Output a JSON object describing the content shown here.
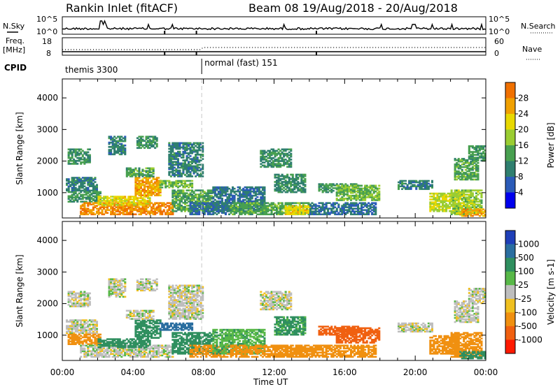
{
  "header": {
    "title": "Rankin Inlet (fitACF)",
    "beam_info": "Beam 08  19/Aug/2018 - 20/Aug/2018"
  },
  "strip_labels": {
    "nsky": "N.Sky",
    "nsky_low": "10^0",
    "nsky_high": "10^5",
    "freq_line1": "Freq.",
    "freq_line2": "[MHz]",
    "freq_low": "8",
    "freq_high": "18",
    "cpid": "CPID",
    "nsearch": "N.Search",
    "nsearch_low": "10^0",
    "nsearch_high": "10^5",
    "nave": "Nave",
    "nave_low": "0",
    "nave_high": "60"
  },
  "cpid_segments": [
    {
      "label": "themis 3300",
      "start_hour": 0.0,
      "end_hour": 7.9
    },
    {
      "label": "normal (fast) 151",
      "start_hour": 7.9,
      "end_hour": 24.0
    }
  ],
  "colors": {
    "power_scale": [
      "#0000ee",
      "#2b5bb8",
      "#2f7f6f",
      "#48a050",
      "#9acd32",
      "#e8d800",
      "#f0a000",
      "#f07000",
      "#ff2000"
    ],
    "velocity_scale": [
      "#1f3fb8",
      "#2a6ea0",
      "#2f8f5f",
      "#58b848",
      "#bebebe",
      "#f0c020",
      "#f09010",
      "#f06010",
      "#ff1a00"
    ],
    "groundscatter": "#bebebe",
    "cutoff": "#c8c8c8"
  },
  "chart_data": [
    {
      "type": "heatmap",
      "title": "Power",
      "ylabel": "Slant Range [km]",
      "xlabel": "",
      "x_unit": "hour UT",
      "xlim": [
        0,
        24
      ],
      "ylim": [
        200,
        4600
      ],
      "yticks": [
        1000,
        2000,
        3000,
        4000
      ],
      "colorbar_label": "Power [dB]",
      "colorbar_ticks": [
        "4",
        "8",
        "12",
        "16",
        "20",
        "24",
        "28"
      ],
      "colorbar_range": [
        0,
        32
      ],
      "regions": [
        {
          "t0": 0.3,
          "t1": 1.6,
          "r0": 1900,
          "r1": 2400,
          "v": 12
        },
        {
          "t0": 0.2,
          "t1": 2.0,
          "r0": 1050,
          "r1": 1500,
          "v": 10
        },
        {
          "t0": 0.3,
          "t1": 2.2,
          "r0": 700,
          "r1": 1050,
          "v": 13
        },
        {
          "t0": 1.0,
          "t1": 6.3,
          "r0": 300,
          "r1": 700,
          "v": 28
        },
        {
          "t0": 2.0,
          "t1": 5.0,
          "r0": 600,
          "r1": 900,
          "v": 22
        },
        {
          "t0": 4.1,
          "t1": 5.6,
          "r0": 900,
          "r1": 1500,
          "v": 26
        },
        {
          "t0": 3.6,
          "t1": 5.2,
          "r0": 1500,
          "r1": 1800,
          "v": 14
        },
        {
          "t0": 2.6,
          "t1": 3.6,
          "r0": 2200,
          "r1": 2800,
          "v": 10
        },
        {
          "t0": 4.2,
          "t1": 5.4,
          "r0": 2400,
          "r1": 2800,
          "v": 12
        },
        {
          "t0": 6.0,
          "t1": 8.0,
          "r0": 1500,
          "r1": 2600,
          "v": 10
        },
        {
          "t0": 6.2,
          "t1": 8.5,
          "r0": 400,
          "r1": 1100,
          "v": 14
        },
        {
          "t0": 5.5,
          "t1": 7.4,
          "r0": 1150,
          "r1": 1400,
          "v": 16
        },
        {
          "t0": 7.2,
          "t1": 9.5,
          "r0": 300,
          "r1": 700,
          "v": 8
        },
        {
          "t0": 8.5,
          "t1": 11.5,
          "r0": 400,
          "r1": 1200,
          "v": 9
        },
        {
          "t0": 11.2,
          "t1": 13.0,
          "r0": 1800,
          "r1": 2400,
          "v": 12
        },
        {
          "t0": 12.0,
          "t1": 13.8,
          "r0": 1000,
          "r1": 1600,
          "v": 11
        },
        {
          "t0": 9.5,
          "t1": 14.0,
          "r0": 300,
          "r1": 700,
          "v": 14
        },
        {
          "t0": 12.6,
          "t1": 14.2,
          "r0": 300,
          "r1": 600,
          "v": 22
        },
        {
          "t0": 14.5,
          "t1": 16.8,
          "r0": 1000,
          "r1": 1300,
          "v": 12
        },
        {
          "t0": 15.5,
          "t1": 18.0,
          "r0": 750,
          "r1": 1250,
          "v": 16
        },
        {
          "t0": 14.0,
          "t1": 17.8,
          "r0": 300,
          "r1": 700,
          "v": 8
        },
        {
          "t0": 19.0,
          "t1": 21.0,
          "r0": 1100,
          "r1": 1400,
          "v": 10
        },
        {
          "t0": 20.8,
          "t1": 22.5,
          "r0": 400,
          "r1": 1000,
          "v": 20
        },
        {
          "t0": 22.0,
          "t1": 23.8,
          "r0": 300,
          "r1": 1100,
          "v": 18
        },
        {
          "t0": 22.2,
          "t1": 23.6,
          "r0": 1400,
          "r1": 2100,
          "v": 14
        },
        {
          "t0": 23.0,
          "t1": 24.0,
          "r0": 2000,
          "r1": 2500,
          "v": 13
        },
        {
          "t0": 22.5,
          "t1": 24.0,
          "r0": 250,
          "r1": 500,
          "v": 26
        }
      ]
    },
    {
      "type": "heatmap",
      "title": "Velocity",
      "ylabel": "Slant Range [km]",
      "xlabel": "Time UT",
      "x_unit": "hour UT",
      "xlim": [
        0,
        24
      ],
      "ylim": [
        200,
        4600
      ],
      "yticks": [
        1000,
        2000,
        3000,
        4000
      ],
      "xticks": [
        "00:00",
        "04:00",
        "08:00",
        "12:00",
        "16:00",
        "20:00",
        "00:00"
      ],
      "colorbar_label": "Velocity [m s-1]",
      "colorbar_ticks": [
        "1000",
        "500",
        "100",
        "25",
        "-25",
        "-100",
        "-500",
        "-1000"
      ],
      "regions": [
        {
          "t0": 0.3,
          "t1": 1.6,
          "r0": 1900,
          "r1": 2400,
          "v": 0
        },
        {
          "t0": 0.2,
          "t1": 2.0,
          "r0": 1050,
          "r1": 1500,
          "v": 0
        },
        {
          "t0": 0.3,
          "t1": 2.2,
          "r0": 700,
          "r1": 1050,
          "v": -150
        },
        {
          "t0": 1.0,
          "t1": 6.3,
          "r0": 300,
          "r1": 700,
          "v": 0
        },
        {
          "t0": 2.0,
          "t1": 5.0,
          "r0": 600,
          "r1": 900,
          "v": 300
        },
        {
          "t0": 4.1,
          "t1": 5.6,
          "r0": 900,
          "r1": 1500,
          "v": 200
        },
        {
          "t0": 3.6,
          "t1": 5.2,
          "r0": 1500,
          "r1": 1800,
          "v": 0
        },
        {
          "t0": 2.6,
          "t1": 3.6,
          "r0": 2200,
          "r1": 2800,
          "v": 0
        },
        {
          "t0": 4.2,
          "t1": 5.4,
          "r0": 2400,
          "r1": 2800,
          "v": 0
        },
        {
          "t0": 6.0,
          "t1": 8.0,
          "r0": 1500,
          "r1": 2600,
          "v": 0
        },
        {
          "t0": 6.2,
          "t1": 8.5,
          "r0": 400,
          "r1": 1100,
          "v": 400
        },
        {
          "t0": 5.5,
          "t1": 7.4,
          "r0": 1150,
          "r1": 1400,
          "v": 600
        },
        {
          "t0": 7.2,
          "t1": 9.5,
          "r0": 300,
          "r1": 700,
          "v": -200
        },
        {
          "t0": 8.5,
          "t1": 11.5,
          "r0": 400,
          "r1": 1200,
          "v": 80
        },
        {
          "t0": 11.2,
          "t1": 13.0,
          "r0": 1800,
          "r1": 2400,
          "v": 0
        },
        {
          "t0": 12.0,
          "t1": 13.8,
          "r0": 1000,
          "r1": 1600,
          "v": 120
        },
        {
          "t0": 9.5,
          "t1": 14.0,
          "r0": 300,
          "r1": 700,
          "v": -300
        },
        {
          "t0": 12.6,
          "t1": 14.2,
          "r0": 300,
          "r1": 600,
          "v": -450
        },
        {
          "t0": 14.5,
          "t1": 16.8,
          "r0": 1000,
          "r1": 1300,
          "v": -600
        },
        {
          "t0": 15.5,
          "t1": 18.0,
          "r0": 750,
          "r1": 1250,
          "v": -900
        },
        {
          "t0": 14.0,
          "t1": 17.8,
          "r0": 300,
          "r1": 700,
          "v": -250
        },
        {
          "t0": 19.0,
          "t1": 21.0,
          "r0": 1100,
          "r1": 1400,
          "v": 0
        },
        {
          "t0": 20.8,
          "t1": 22.5,
          "r0": 400,
          "r1": 1000,
          "v": -300
        },
        {
          "t0": 22.0,
          "t1": 23.8,
          "r0": 300,
          "r1": 1100,
          "v": -150
        },
        {
          "t0": 22.2,
          "t1": 23.6,
          "r0": 1400,
          "r1": 2100,
          "v": 0
        },
        {
          "t0": 23.0,
          "t1": 24.0,
          "r0": 2000,
          "r1": 2500,
          "v": 0
        },
        {
          "t0": 22.5,
          "t1": 24.0,
          "r0": 250,
          "r1": 500,
          "v": 150
        }
      ]
    }
  ]
}
